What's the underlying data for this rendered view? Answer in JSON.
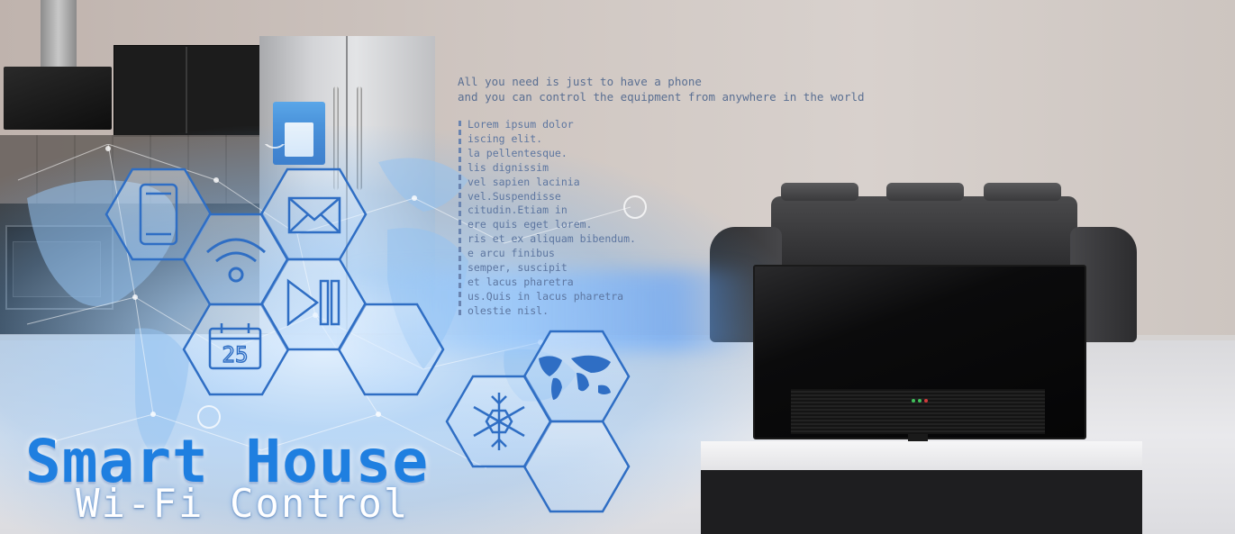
{
  "headline": {
    "line1": "All you need is just to have a phone",
    "line2": "and you can control the equipment from anywhere in the world"
  },
  "lorem_lines": [
    "Lorem ipsum dolor",
    "iscing elit.",
    "la pellentesque.",
    "lis dignissim",
    "vel sapien lacinia",
    "vel.Suspendisse",
    "citudin.Etiam in",
    "ere quis eget lorem.",
    "ris et ex aliquam bibendum.",
    "e arcu finibus",
    "semper, suscipit",
    "et lacus pharetra",
    "us.Quis in lacus pharetra",
    "olestie nisl."
  ],
  "title": "Smart House",
  "subtitle": "Wi-Fi Control",
  "calendar_number": "25",
  "icons": [
    "phone-icon",
    "wifi-icon",
    "mail-icon",
    "play-pause-icon",
    "calendar-icon",
    "snowflake-icon",
    "world-map-icon"
  ],
  "colors": {
    "accent": "#1f7fe0",
    "hex_stroke": "#2f6ec4",
    "text_blue": "#5a6f92"
  }
}
